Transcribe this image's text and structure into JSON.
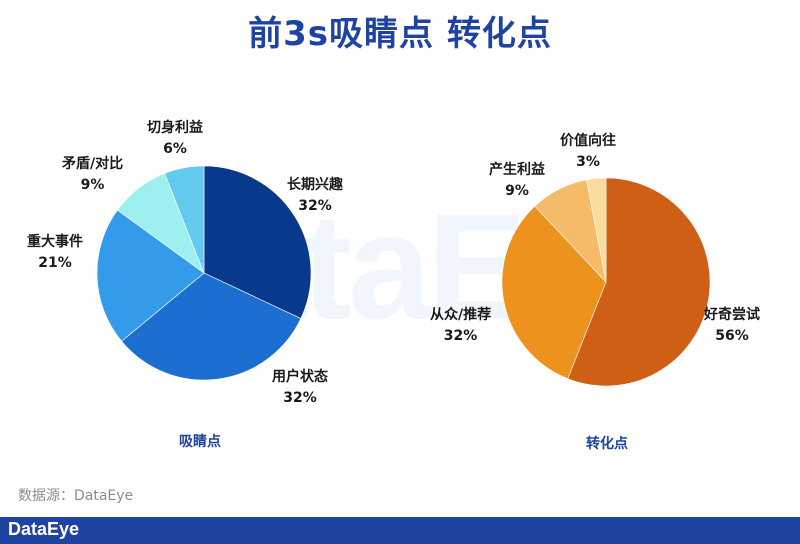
{
  "title": "前3s吸睛点 转化点",
  "watermark": "DataEye",
  "source": "数据源：DataEye",
  "footer_logo": "DataEye",
  "chart_data": [
    {
      "type": "pie",
      "caption": "吸睛点",
      "slices": [
        {
          "label": "长期兴趣",
          "value": 32,
          "pct": "32%",
          "color": "#08398c"
        },
        {
          "label": "用户状态",
          "value": 32,
          "pct": "32%",
          "color": "#1c6fd1"
        },
        {
          "label": "重大事件",
          "value": 21,
          "pct": "21%",
          "color": "#339bea"
        },
        {
          "label": "矛盾/对比",
          "value": 9,
          "pct": "9%",
          "color": "#9ef0f0"
        },
        {
          "label": "切身利益",
          "value": 6,
          "pct": "6%",
          "color": "#62c9ef"
        }
      ]
    },
    {
      "type": "pie",
      "caption": "转化点",
      "slices": [
        {
          "label": "好奇尝试",
          "value": 56,
          "pct": "56%",
          "color": "#cf5f15"
        },
        {
          "label": "从众/推荐",
          "value": 32,
          "pct": "32%",
          "color": "#ee921e"
        },
        {
          "label": "产生利益",
          "value": 9,
          "pct": "9%",
          "color": "#f5bb68"
        },
        {
          "label": "价值向往",
          "value": 3,
          "pct": "3%",
          "color": "#fadc9c"
        }
      ]
    }
  ]
}
